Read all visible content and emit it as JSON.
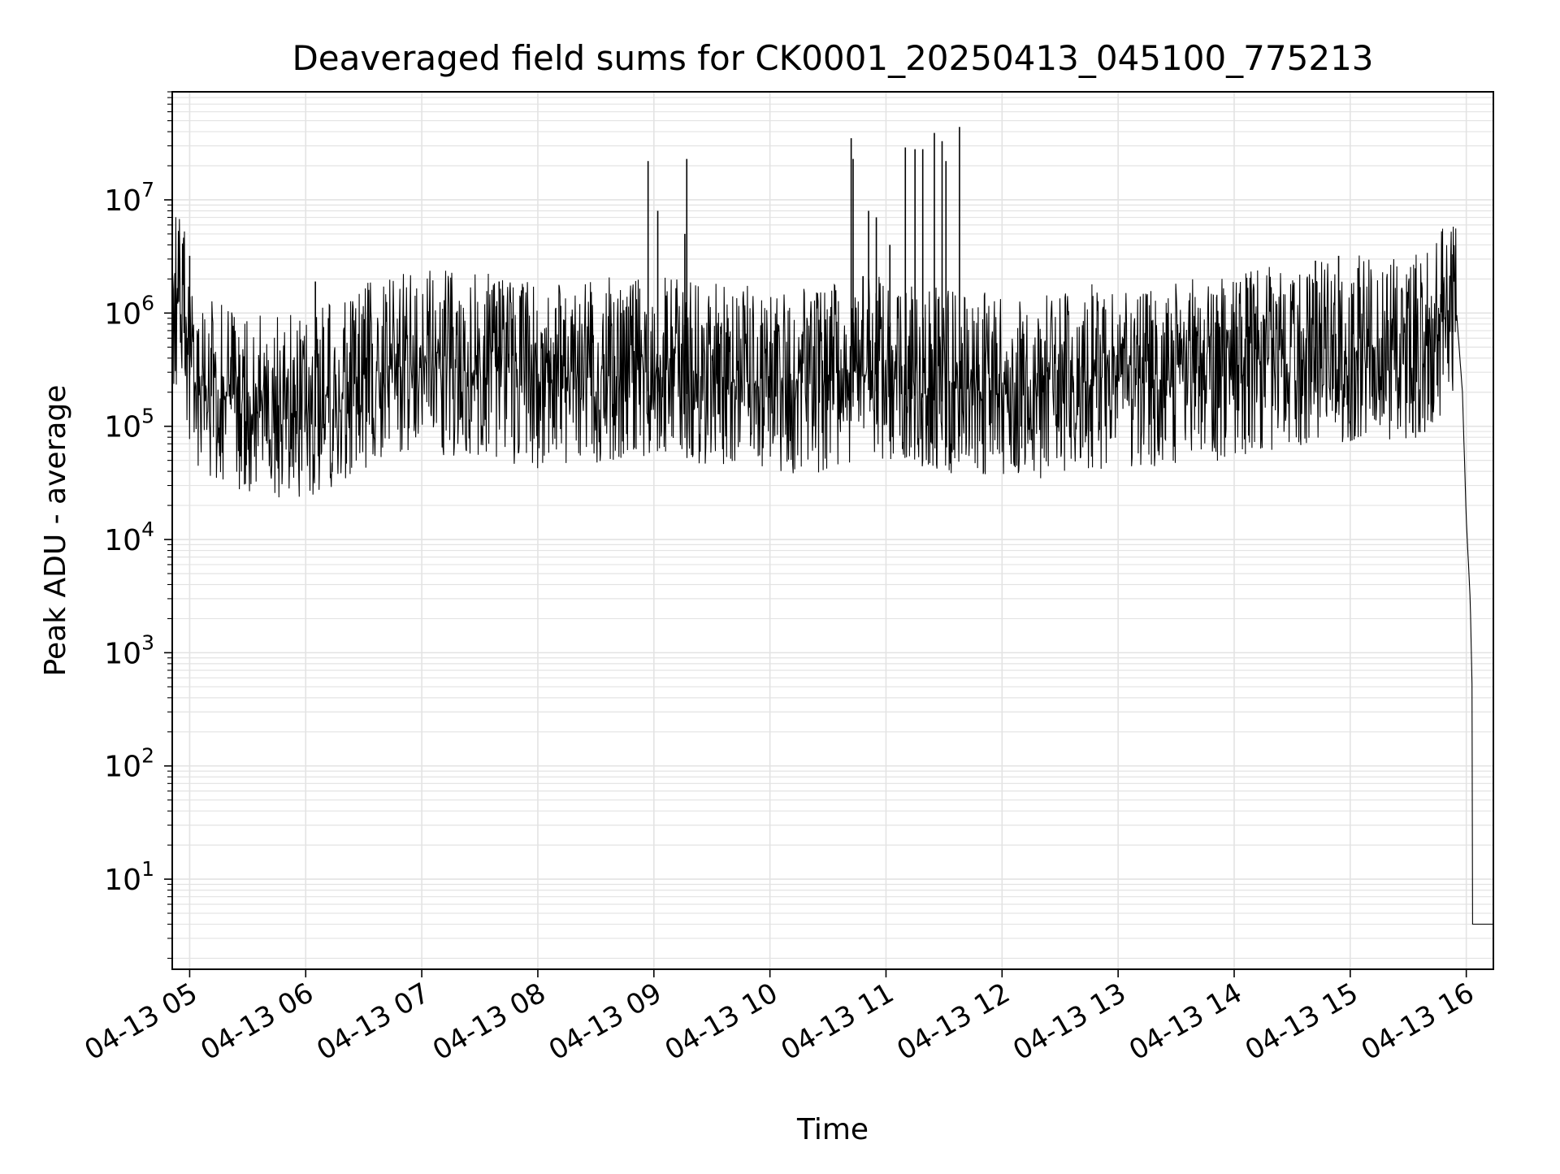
{
  "chart_data": {
    "type": "line",
    "title": "Deaveraged field sums for CK0001_20250413_045100_775213",
    "xlabel": "Time",
    "ylabel": "Peak ADU - average",
    "yscale": "log",
    "ylim": [
      1.6,
      90000000
    ],
    "xlim": [
      "2025-04-13 04:51",
      "2025-04-13 16:14"
    ],
    "x_ticks": [
      "04-13 05",
      "04-13 06",
      "04-13 07",
      "04-13 08",
      "04-13 09",
      "04-13 10",
      "04-13 11",
      "04-13 12",
      "04-13 13",
      "04-13 14",
      "04-13 15",
      "04-13 16"
    ],
    "y_ticks": [
      {
        "mantissa": "10",
        "exp": "1",
        "value": 10
      },
      {
        "mantissa": "10",
        "exp": "2",
        "value": 100
      },
      {
        "mantissa": "10",
        "exp": "3",
        "value": 1000
      },
      {
        "mantissa": "10",
        "exp": "4",
        "value": 10000
      },
      {
        "mantissa": "10",
        "exp": "5",
        "value": 100000
      },
      {
        "mantissa": "10",
        "exp": "6",
        "value": 1000000
      },
      {
        "mantissa": "10",
        "exp": "7",
        "value": 10000000
      }
    ],
    "grid": true,
    "line_color": "#000000",
    "series": [
      {
        "values_note_free": true,
        "x": [
          "2025-04-13 04:51",
          "2025-04-13 04:53",
          "2025-04-13 04:55",
          "2025-04-13 04:58",
          "2025-04-13 05:02",
          "2025-04-13 05:06",
          "2025-04-13 05:12",
          "2025-04-13 05:20",
          "2025-04-13 05:30",
          "2025-04-13 05:40",
          "2025-04-13 05:50",
          "2025-04-13 06:00",
          "2025-04-13 06:15",
          "2025-04-13 06:30",
          "2025-04-13 06:45",
          "2025-04-13 07:00",
          "2025-04-13 07:20",
          "2025-04-13 07:40",
          "2025-04-13 08:00",
          "2025-04-13 08:20",
          "2025-04-13 08:40",
          "2025-04-13 08:57",
          "2025-04-13 09:10",
          "2025-04-13 09:18",
          "2025-04-13 09:30",
          "2025-04-13 09:50",
          "2025-04-13 10:10",
          "2025-04-13 10:30",
          "2025-04-13 10:42",
          "2025-04-13 10:50",
          "2025-04-13 11:00",
          "2025-04-13 11:15",
          "2025-04-13 11:26",
          "2025-04-13 11:33",
          "2025-04-13 11:40",
          "2025-04-13 12:00",
          "2025-04-13 12:20",
          "2025-04-13 12:40",
          "2025-04-13 13:00",
          "2025-04-13 13:20",
          "2025-04-13 13:40",
          "2025-04-13 14:00",
          "2025-04-13 14:20",
          "2025-04-13 14:40",
          "2025-04-13 15:00",
          "2025-04-13 15:20",
          "2025-04-13 15:40",
          "2025-04-13 15:52",
          "2025-04-13 15:55",
          "2025-04-13 15:58",
          "2025-04-13 16:00",
          "2025-04-13 16:02",
          "2025-04-13 16:03",
          "2025-04-13 16:14"
        ],
        "y": [
          1800000,
          1500000,
          1200000,
          900000,
          250000,
          300000,
          220000,
          200000,
          180000,
          160000,
          170000,
          150000,
          200000,
          300000,
          350000,
          400000,
          380000,
          350000,
          300000,
          320000,
          330000,
          340000,
          330000,
          320000,
          300000,
          280000,
          260000,
          280000,
          330000,
          350000,
          330000,
          310000,
          280000,
          270000,
          250000,
          240000,
          240000,
          300000,
          280000,
          290000,
          320000,
          360000,
          420000,
          480000,
          520000,
          530000,
          540000,
          1200000,
          1000000,
          200000,
          15000,
          3000,
          500,
          4
        ]
      }
    ],
    "spikes": [
      {
        "x": "2025-04-13 08:57",
        "y": 22000000
      },
      {
        "x": "2025-04-13 09:02",
        "y": 8000000
      },
      {
        "x": "2025-04-13 09:16",
        "y": 5000000
      },
      {
        "x": "2025-04-13 09:17",
        "y": 23000000
      },
      {
        "x": "2025-04-13 10:42",
        "y": 35000000
      },
      {
        "x": "2025-04-13 10:43",
        "y": 23000000
      },
      {
        "x": "2025-04-13 10:51",
        "y": 8000000
      },
      {
        "x": "2025-04-13 10:55",
        "y": 7000000
      },
      {
        "x": "2025-04-13 11:02",
        "y": 4000000
      },
      {
        "x": "2025-04-13 11:10",
        "y": 29000000
      },
      {
        "x": "2025-04-13 11:15",
        "y": 28000000
      },
      {
        "x": "2025-04-13 11:19",
        "y": 28000000
      },
      {
        "x": "2025-04-13 11:25",
        "y": 39000000
      },
      {
        "x": "2025-04-13 11:29",
        "y": 33000000
      },
      {
        "x": "2025-04-13 11:31",
        "y": 22000000
      },
      {
        "x": "2025-04-13 11:38",
        "y": 44000000
      },
      {
        "x": "2025-04-13 05:00",
        "y": 3200000
      },
      {
        "x": "2025-04-13 06:05",
        "y": 1900000
      },
      {
        "x": "2025-04-13 07:40",
        "y": 1900000
      },
      {
        "x": "2025-04-13 14:42",
        "y": 2900000
      },
      {
        "x": "2025-04-13 14:54",
        "y": 3200000
      },
      {
        "x": "2025-04-13 15:04",
        "y": 2500000
      },
      {
        "x": "2025-04-13 15:53",
        "y": 3300000
      }
    ]
  }
}
